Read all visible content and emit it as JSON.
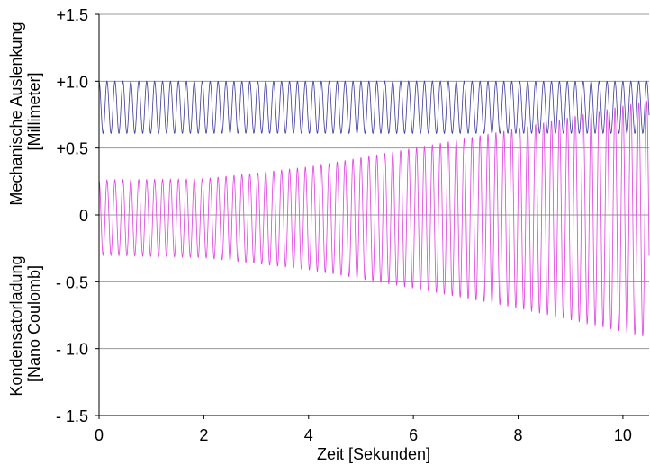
{
  "chart_data": {
    "type": "line",
    "xlabel": "Zeit [Sekunden]",
    "ylabel_upper": [
      "Mechanische Auslenkung",
      "[Millimeter]"
    ],
    "ylabel_lower": [
      "Kondensatorladung",
      "[Nano Coulomb]"
    ],
    "xlim": [
      0,
      10.5
    ],
    "ylim": [
      -1.5,
      1.5
    ],
    "x_ticks": [
      0,
      2,
      4,
      6,
      8,
      10
    ],
    "x_tick_labels": [
      "0",
      "2",
      "4",
      "6",
      "8",
      "10"
    ],
    "y_ticks": [
      1.5,
      1.0,
      0.5,
      0,
      -0.5,
      -1.0,
      -1.5
    ],
    "y_tick_labels": [
      "+1.5",
      "+1.0",
      "+0.5",
      "0",
      "- 0.5",
      "- 1.0",
      "- 1.5"
    ],
    "grid": "horizontal",
    "series": [
      {
        "color": "#3a3a9a",
        "waveform": "oscillation",
        "x": [
          0,
          10.5
        ],
        "center": [
          0.805,
          0.805
        ],
        "amplitude": [
          0.195,
          0.195
        ],
        "frequency_hz": 6.6
      },
      {
        "color": "#e040e0",
        "waveform": "oscillation",
        "x": [
          0,
          2,
          4,
          6,
          8,
          10.5
        ],
        "upper": [
          0.26,
          0.27,
          0.36,
          0.5,
          0.65,
          0.86
        ],
        "lower": [
          -0.3,
          -0.32,
          -0.41,
          -0.55,
          -0.7,
          -0.92
        ],
        "frequency_hz": 6.6
      }
    ]
  }
}
